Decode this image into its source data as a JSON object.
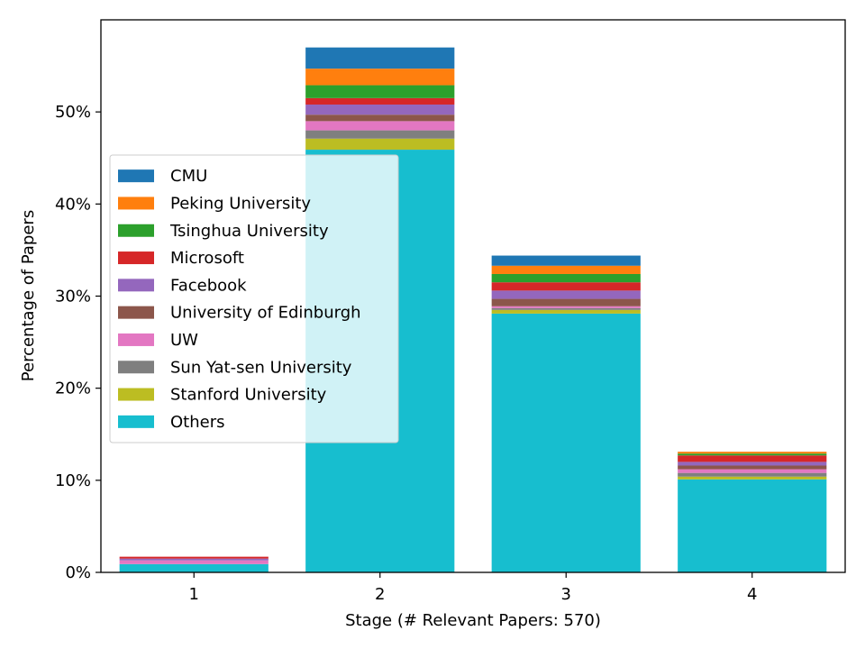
{
  "chart_data": {
    "type": "bar",
    "stacked": true,
    "title": "",
    "xlabel": "Stage (# Relevant Papers: 570)",
    "ylabel": "Percentage of Papers",
    "categories": [
      "1",
      "2",
      "3",
      "4"
    ],
    "ylim": [
      0,
      60
    ],
    "yticks": [
      0,
      10,
      20,
      30,
      40,
      50
    ],
    "ytick_format": "%",
    "grid": false,
    "legend_placement": "center-left",
    "series": [
      {
        "name": "Others",
        "color": "#17becf",
        "values": [
          0.9,
          45.9,
          28.1,
          10.1
        ]
      },
      {
        "name": "Stanford University",
        "color": "#bcbd22",
        "values": [
          0.0,
          1.2,
          0.4,
          0.3
        ]
      },
      {
        "name": "Sun Yat-sen University",
        "color": "#7f7f7f",
        "values": [
          0.0,
          0.9,
          0.2,
          0.4
        ]
      },
      {
        "name": "UW",
        "color": "#e377c2",
        "values": [
          0.4,
          1.0,
          0.2,
          0.4
        ]
      },
      {
        "name": "University of Edinburgh",
        "color": "#8c564b",
        "values": [
          0.0,
          0.7,
          0.8,
          0.4
        ]
      },
      {
        "name": "Facebook",
        "color": "#9467bd",
        "values": [
          0.2,
          1.1,
          0.9,
          0.4
        ]
      },
      {
        "name": "Microsoft",
        "color": "#d62728",
        "values": [
          0.2,
          0.7,
          0.9,
          0.7
        ]
      },
      {
        "name": "Tsinghua University",
        "color": "#2ca02c",
        "values": [
          0.0,
          1.4,
          0.9,
          0.2
        ]
      },
      {
        "name": "Peking University",
        "color": "#ff7f0e",
        "values": [
          0.0,
          1.8,
          0.9,
          0.2
        ]
      },
      {
        "name": "CMU",
        "color": "#1f77b4",
        "values": [
          0.0,
          2.3,
          1.1,
          0.0
        ]
      }
    ],
    "legend_order": [
      "CMU",
      "Peking University",
      "Tsinghua University",
      "Microsoft",
      "Facebook",
      "University of Edinburgh",
      "UW",
      "Sun Yat-sen University",
      "Stanford University",
      "Others"
    ]
  }
}
